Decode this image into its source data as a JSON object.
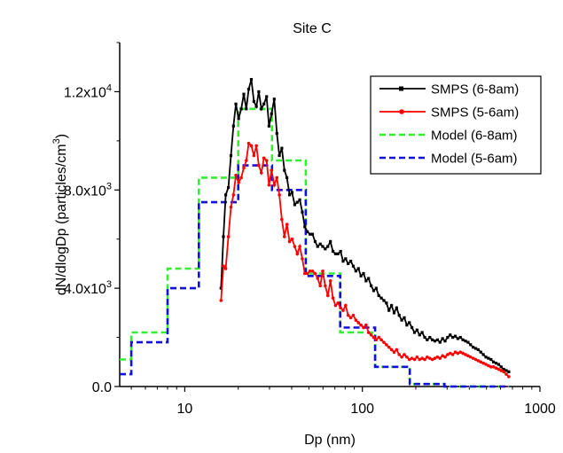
{
  "chart_data": {
    "type": "line",
    "title": "Site C",
    "xlabel": "Dp (nm)",
    "ylabel_main": "dN/dlogDp (particles/cm",
    "ylabel_sup": "3",
    "ylabel_close": ")",
    "x_scale": "log",
    "xlim": [
      4.3,
      1000
    ],
    "ylim": [
      0,
      14000
    ],
    "x_ticks": [
      {
        "value": 10,
        "label": "10"
      },
      {
        "value": 100,
        "label": "100"
      },
      {
        "value": 1000,
        "label": "1000"
      }
    ],
    "y_ticks": [
      {
        "value": 0,
        "base": "0.0",
        "exp": ""
      },
      {
        "value": 4000,
        "base": "4.0x10",
        "exp": "3"
      },
      {
        "value": 8000,
        "base": "8.0x10",
        "exp": "3"
      },
      {
        "value": 12000,
        "base": "1.2x10",
        "exp": "4"
      }
    ],
    "grid": false,
    "legend_position": "top-right",
    "series": [
      {
        "name": "SMPS (6-8am)",
        "color": "#000000",
        "style": "solid",
        "marker": "square",
        "x": [
          16.0,
          16.5,
          17.0,
          17.6,
          18.2,
          18.8,
          19.4,
          20.1,
          20.8,
          21.5,
          22.2,
          22.9,
          23.7,
          24.5,
          25.3,
          26.1,
          27.0,
          27.9,
          28.9,
          29.8,
          30.8,
          31.9,
          33.0,
          34.1,
          35.2,
          36.4,
          37.6,
          38.9,
          40.2,
          41.6,
          43.0,
          44.4,
          45.9,
          47.4,
          49.0,
          50.7,
          52.4,
          54.2,
          56.0,
          57.9,
          59.8,
          61.8,
          63.9,
          66.1,
          68.3,
          70.6,
          72.9,
          75.4,
          77.9,
          80.5,
          83.2,
          86.0,
          88.9,
          91.9,
          95.0,
          98.2,
          101.5,
          104.9,
          108.4,
          112.1,
          115.8,
          119.7,
          123.7,
          127.9,
          132.2,
          136.6,
          141.2,
          146.0,
          150.9,
          155.9,
          161.2,
          166.6,
          172.2,
          178.0,
          184.0,
          190.2,
          196.6,
          203.2,
          210.0,
          217.1,
          224.4,
          231.9,
          239.7,
          247.8,
          256.1,
          264.7,
          273.6,
          282.8,
          292.3,
          302.1,
          312.3,
          322.8,
          333.6,
          344.8,
          356.4,
          368.4,
          380.8,
          393.6,
          406.8,
          420.5,
          434.6,
          449.2,
          464.3,
          479.9,
          496.0,
          512.7,
          529.9,
          547.7,
          566.1,
          585.1,
          604.8,
          625.1,
          646.1,
          667.8
        ],
        "y": [
          4000,
          6100,
          7800,
          8100,
          9400,
          10600,
          11500,
          10900,
          11300,
          11900,
          11300,
          12100,
          12500,
          11600,
          11400,
          12000,
          11300,
          11500,
          11800,
          10600,
          11100,
          11700,
          10300,
          9400,
          9700,
          8800,
          8500,
          7800,
          7900,
          7400,
          7500,
          7600,
          7100,
          6500,
          6300,
          6200,
          6200,
          5900,
          5700,
          5800,
          5700,
          5600,
          5700,
          5900,
          5500,
          5400,
          5400,
          5500,
          5100,
          5200,
          5000,
          5100,
          4900,
          4700,
          4800,
          4500,
          4600,
          4300,
          4400,
          4100,
          3900,
          4000,
          3700,
          3600,
          3500,
          3400,
          3100,
          3300,
          3000,
          3200,
          2900,
          2700,
          2800,
          2500,
          2600,
          2400,
          2200,
          2300,
          2100,
          2200,
          2000,
          1900,
          2000,
          1900,
          1850,
          1900,
          1800,
          1950,
          1850,
          2000,
          2100,
          2000,
          2050,
          1950,
          2000,
          1900,
          1850,
          1800,
          1700,
          1600,
          1550,
          1500,
          1400,
          1300,
          1200,
          1150,
          1100,
          1000,
          950,
          900,
          800,
          700,
          650,
          600
        ]
      },
      {
        "name": "SMPS (5-6am)",
        "color": "#ff0000",
        "style": "solid",
        "marker": "circle",
        "x": [
          16.0,
          16.5,
          17.0,
          17.6,
          18.2,
          18.8,
          19.4,
          20.1,
          20.8,
          21.5,
          22.2,
          22.9,
          23.7,
          24.5,
          25.3,
          26.1,
          27.0,
          27.9,
          28.9,
          29.8,
          30.8,
          31.9,
          33.0,
          34.1,
          35.2,
          36.4,
          37.6,
          38.9,
          40.2,
          41.6,
          43.0,
          44.4,
          45.9,
          47.4,
          49.0,
          50.7,
          52.4,
          54.2,
          56.0,
          57.9,
          59.8,
          61.8,
          63.9,
          66.1,
          68.3,
          70.6,
          72.9,
          75.4,
          77.9,
          80.5,
          83.2,
          86.0,
          88.9,
          91.9,
          95.0,
          98.2,
          101.5,
          104.9,
          108.4,
          112.1,
          115.8,
          119.7,
          123.7,
          127.9,
          132.2,
          136.6,
          141.2,
          146.0,
          150.9,
          155.9,
          161.2,
          166.6,
          172.2,
          178.0,
          184.0,
          190.2,
          196.6,
          203.2,
          210.0,
          217.1,
          224.4,
          231.9,
          239.7,
          247.8,
          256.1,
          264.7,
          273.6,
          282.8,
          292.3,
          302.1,
          312.3,
          322.8,
          333.6,
          344.8,
          356.4,
          368.4,
          380.8,
          393.6,
          406.8,
          420.5,
          434.6,
          449.2,
          464.3,
          479.9,
          496.0,
          512.7,
          529.9,
          547.7,
          566.1,
          585.1,
          604.8,
          625.1,
          646.1,
          667.8
        ],
        "y": [
          3500,
          4900,
          4800,
          6100,
          7300,
          7800,
          8600,
          8300,
          8500,
          8900,
          9200,
          9900,
          9800,
          9400,
          9800,
          9000,
          8700,
          9300,
          9200,
          8200,
          8800,
          8200,
          8500,
          7800,
          6800,
          6100,
          6600,
          5900,
          6000,
          5700,
          5400,
          5700,
          5200,
          4600,
          4600,
          4700,
          4700,
          4600,
          4400,
          4100,
          4700,
          4100,
          3700,
          4300,
          3600,
          3300,
          3400,
          3200,
          3100,
          3300,
          2900,
          2800,
          2900,
          2700,
          2600,
          2500,
          2400,
          2500,
          2200,
          2100,
          2000,
          1900,
          2000,
          1900,
          1800,
          1700,
          1600,
          1500,
          1400,
          1500,
          1300,
          1200,
          1300,
          1200,
          1100,
          1150,
          1100,
          1200,
          1100,
          1150,
          1100,
          1200,
          1150,
          1100,
          1150,
          1200,
          1150,
          1250,
          1200,
          1300,
          1350,
          1300,
          1400,
          1350,
          1400,
          1350,
          1300,
          1250,
          1200,
          1150,
          1100,
          1050,
          1000,
          950,
          900,
          850,
          800,
          800,
          750,
          700,
          650,
          600,
          500,
          400
        ]
      },
      {
        "name": "Model (6-8am)",
        "color": "#33ee33",
        "style": "dashed",
        "steps": {
          "edges": [
            4.3,
            5.0,
            8.0,
            12.0,
            20.0,
            31.0,
            48.0,
            75.0,
            118.0,
            185.0,
            290.0,
            450.0,
            670.0
          ],
          "values": [
            1100,
            2200,
            4800,
            8500,
            11300,
            9200,
            4600,
            2200,
            800,
            100,
            0,
            0
          ]
        }
      },
      {
        "name": "Model (5-6am)",
        "color": "#1111dd",
        "style": "dashed",
        "steps": {
          "edges": [
            4.3,
            5.0,
            8.0,
            12.0,
            20.0,
            31.0,
            48.0,
            75.0,
            118.0,
            185.0,
            290.0,
            450.0,
            670.0
          ],
          "values": [
            500,
            1800,
            4000,
            7500,
            9000,
            8000,
            4500,
            2400,
            800,
            100,
            0,
            0
          ]
        }
      }
    ]
  }
}
